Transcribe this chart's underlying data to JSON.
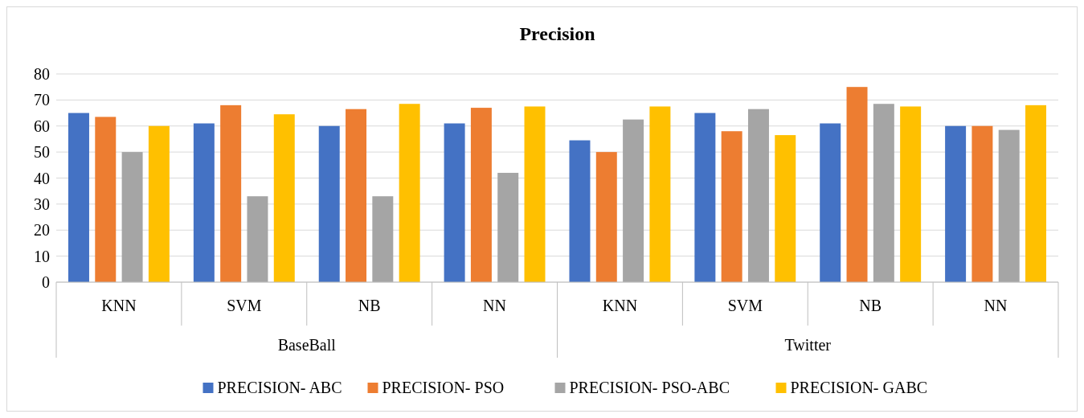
{
  "chart_data": {
    "type": "bar",
    "title": "Precision",
    "categories": [
      "KNN",
      "SVM",
      "NB",
      "NN",
      "KNN",
      "SVM",
      "NB",
      "NN"
    ],
    "annotations": [
      "BaseBall",
      "Twitter"
    ],
    "series": [
      {
        "name": "PRECISION- ABC",
        "color": "#4472c4",
        "values": [
          65,
          61,
          60,
          61,
          54.5,
          65,
          61,
          60
        ]
      },
      {
        "name": "PRECISION- PSO",
        "color": "#ed7d31",
        "values": [
          63.5,
          68,
          66.5,
          67,
          50,
          58,
          75,
          60
        ]
      },
      {
        "name": "PRECISION- PSO-ABC",
        "color": "#a5a5a5",
        "values": [
          50,
          33,
          33,
          42,
          62.5,
          66.5,
          68.5,
          58.5
        ]
      },
      {
        "name": "PRECISION- GABC",
        "color": "#ffc000",
        "values": [
          60,
          64.5,
          68.5,
          67.5,
          67.5,
          56.5,
          67.5,
          68
        ]
      }
    ],
    "ylim": [
      0,
      80
    ],
    "yticks": [
      0,
      10,
      20,
      30,
      40,
      50,
      60,
      70,
      80
    ],
    "grid": "y",
    "legend": "bottom"
  }
}
